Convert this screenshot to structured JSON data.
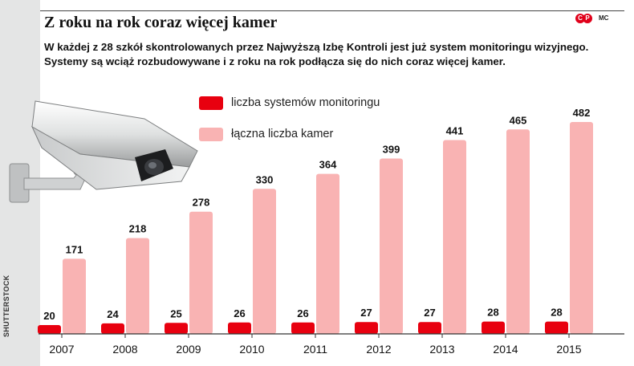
{
  "header": {
    "title": "Z roku na rok coraz więcej kamer",
    "subtitle": "W każdej z 28 szkół skontrolowanych przez Najwyższą Izbę Kontroli jest już system monitoringu wizyjnego. Systemy są wciąż rozbudowywane i z roku na rok podłącza się do nich coraz więcej kamer.",
    "logo_text": "CP",
    "author": "MC"
  },
  "credit": "SHUTTERSTOCK",
  "colors": {
    "systems": "#e8000f",
    "cameras": "#f9b3b3",
    "axis": "#333333",
    "panel": "#e4e5e5"
  },
  "legend": [
    {
      "label": "liczba systemów monitoringu",
      "color": "#e8000f"
    },
    {
      "label": "łączna liczba kamer",
      "color": "#f9b3b3"
    }
  ],
  "chart_data": {
    "type": "bar",
    "title": "Z roku na rok coraz więcej kamer",
    "categories": [
      "2007",
      "2008",
      "2009",
      "2010",
      "2011",
      "2012",
      "2013",
      "2014",
      "2015"
    ],
    "series": [
      {
        "name": "liczba systemów monitoringu",
        "values": [
          20,
          24,
          25,
          26,
          26,
          27,
          27,
          28,
          28
        ]
      },
      {
        "name": "łączna liczba kamer",
        "values": [
          171,
          218,
          278,
          330,
          364,
          399,
          441,
          465,
          482
        ]
      }
    ],
    "ylim": [
      0,
      500
    ],
    "grid": false,
    "legend": "top-left"
  }
}
